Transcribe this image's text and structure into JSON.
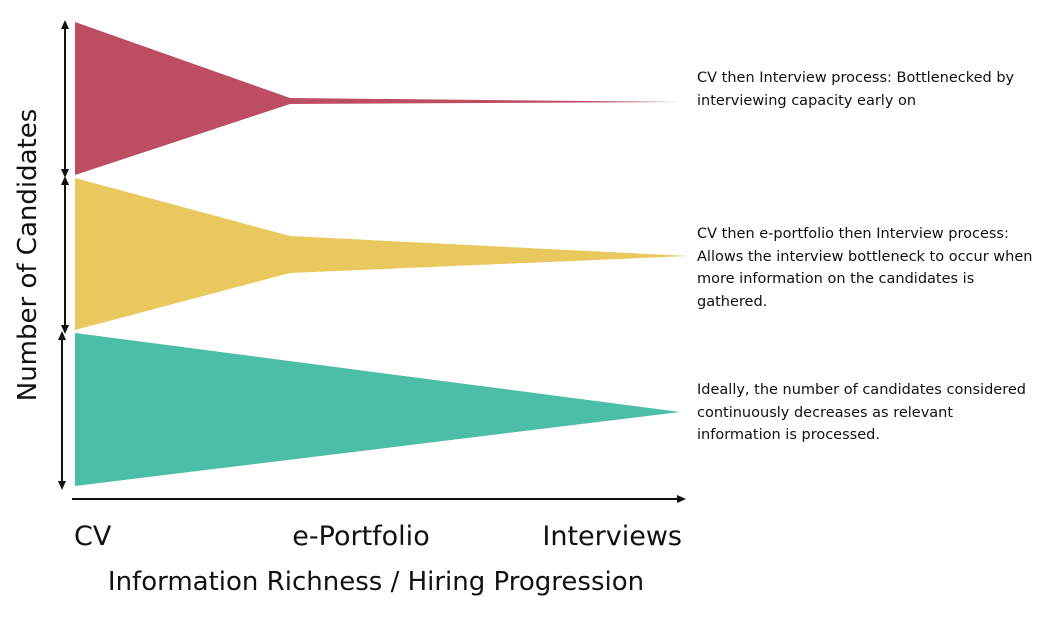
{
  "axes": {
    "y_label": "Number of Candidates",
    "x_label": "Information Richness / Hiring Progression",
    "stages": [
      "CV",
      "e-Portfolio",
      "Interviews"
    ]
  },
  "funnels": [
    {
      "id": "cv-interview",
      "color": "#bd4d62",
      "description": "CV then Interview process: Bottlenecked by interviewing capacity early on"
    },
    {
      "id": "cv-eportfolio-interview",
      "color": "#e9c85d",
      "description": "CV then e-portfolio then Interview process: Allows the interview bottleneck to occur when more information on the candidates is gathered."
    },
    {
      "id": "ideal",
      "color": "#4cbda6",
      "description": "Ideally, the number of candidates considered continuously decreases as relevant information is processed."
    }
  ],
  "colors": {
    "ink": "#111111"
  }
}
